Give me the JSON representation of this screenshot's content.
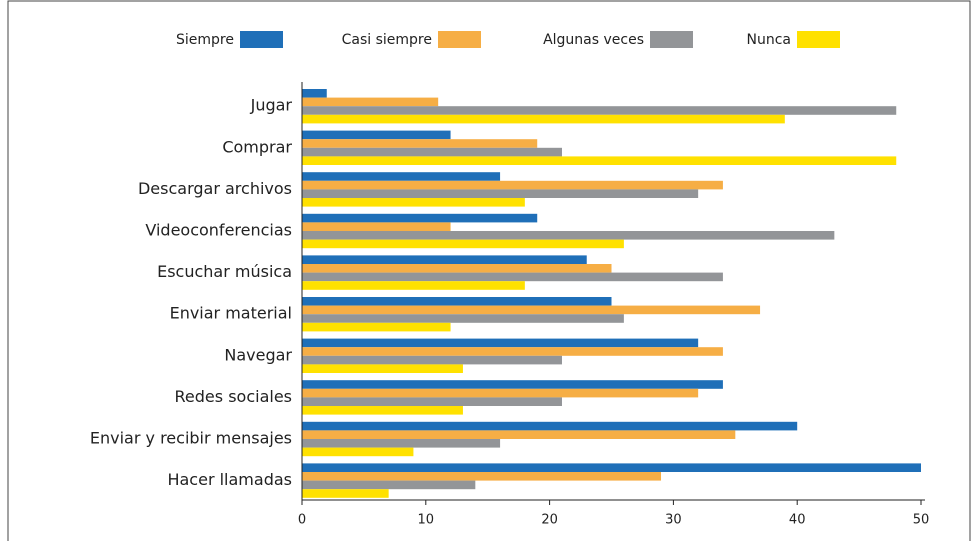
{
  "chart_data": {
    "type": "bar",
    "orientation": "horizontal",
    "categories": [
      "Jugar",
      "Comprar",
      "Descargar archivos",
      "Videoconferencias",
      "Escuchar música",
      "Enviar material",
      "Navegar",
      "Redes sociales",
      "Enviar y recibir mensajes",
      "Hacer llamadas"
    ],
    "series": [
      {
        "name": "Siempre",
        "color": "#1f6fb8",
        "values": [
          2,
          12,
          16,
          19,
          23,
          25,
          32,
          34,
          40,
          50
        ]
      },
      {
        "name": "Casi siempre",
        "color": "#f6ae45",
        "values": [
          11,
          19,
          34,
          12,
          25,
          37,
          34,
          32,
          35,
          29
        ]
      },
      {
        "name": "Algunas veces",
        "color": "#939598",
        "values": [
          48,
          21,
          32,
          43,
          34,
          26,
          21,
          21,
          16,
          14
        ]
      },
      {
        "name": "Nunca",
        "color": "#ffe100",
        "values": [
          39,
          48,
          18,
          26,
          18,
          12,
          13,
          13,
          9,
          7
        ]
      }
    ],
    "xlim": [
      0,
      50
    ],
    "xticks": [
      0,
      10,
      20,
      30,
      40,
      50
    ],
    "legend": "top"
  }
}
